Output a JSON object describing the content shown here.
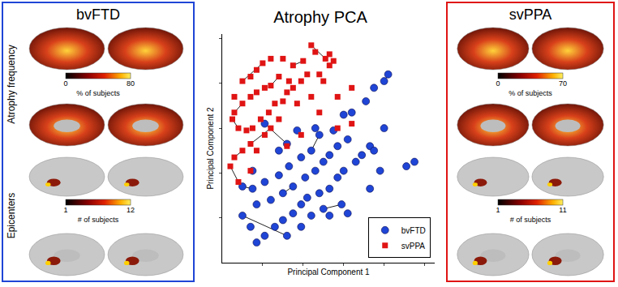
{
  "chart_data": {
    "type": "scatter",
    "title": "Atrophy PCA",
    "x_label": "Principal Component 1",
    "y_label": "Principal Component 2",
    "xlim": [
      0,
      10.5
    ],
    "ylim": [
      0,
      10.2
    ],
    "xticks": [
      2,
      4,
      6,
      8,
      10
    ],
    "yticks": [
      2,
      4,
      6,
      8,
      10
    ],
    "tick_labels": false,
    "legend": "lower right",
    "grid": false,
    "series": [
      {
        "name": "bvFTD",
        "color": "#1f45d6",
        "marker": "circle",
        "x": [
          2.1,
          3.2,
          4.6,
          3.7,
          2.8,
          1.5,
          1.0,
          1.5,
          2.1,
          2.8,
          3.3,
          3.9,
          4.4,
          4.8,
          5.5,
          6.0,
          6.4,
          7.1,
          7.5,
          8.0,
          8.2,
          1.7,
          2.4,
          3.0,
          3.5,
          4.1,
          4.6,
          5.0,
          5.3,
          5.7,
          6.2,
          7.3,
          7.5,
          6.9,
          6.6,
          6.0,
          5.7,
          5.3,
          4.8,
          4.2,
          3.9,
          3.5,
          3.0,
          2.6,
          2.1,
          1.7,
          1.4,
          1.0,
          3.2,
          3.9,
          4.4,
          5.0,
          5.9,
          6.2,
          5.3,
          9.5,
          9.1,
          7.8,
          7.3,
          8.0
        ],
        "y": [
          6.2,
          5.3,
          6.0,
          5.9,
          5.0,
          4.1,
          3.4,
          3.3,
          3.6,
          3.9,
          4.3,
          4.7,
          5.0,
          5.7,
          5.9,
          6.6,
          6.7,
          7.2,
          7.8,
          8.1,
          8.4,
          2.6,
          2.8,
          3.1,
          3.4,
          3.8,
          4.1,
          4.5,
          4.8,
          5.2,
          5.5,
          5.2,
          5.0,
          4.8,
          4.5,
          4.1,
          3.8,
          3.3,
          3.1,
          2.9,
          2.6,
          2.2,
          1.9,
          1.6,
          1.2,
          0.9,
          1.6,
          2.1,
          1.2,
          1.6,
          2.1,
          2.4,
          2.6,
          2.2,
          2.1,
          4.5,
          4.3,
          4.1,
          3.3,
          6.0
        ],
        "links": [
          [
            1,
            0
          ],
          [
            19,
            20
          ],
          [
            6,
            7
          ],
          [
            23,
            24
          ],
          [
            47,
            48
          ],
          [
            51,
            52
          ],
          [
            12,
            13
          ],
          [
            31,
            32
          ]
        ]
      },
      {
        "name": "svPPA",
        "color": "#e01414",
        "marker": "square",
        "x": [
          1.0,
          1.4,
          1.7,
          2.0,
          2.4,
          3.0,
          3.5,
          4.0,
          4.4,
          4.6,
          5.1,
          5.3,
          5.5,
          5.3,
          4.8,
          4.2,
          3.9,
          3.3,
          2.8,
          2.4,
          2.1,
          1.7,
          1.4,
          1.0,
          0.6,
          0.5,
          0.8,
          1.2,
          1.5,
          1.9,
          2.3,
          2.6,
          3.0,
          3.2,
          3.5,
          2.8,
          2.4,
          2.1,
          1.4,
          1.7,
          1.0,
          0.6,
          0.4,
          0.8,
          1.4,
          3.7,
          4.4,
          5.0,
          5.7,
          6.4,
          4.8,
          3.2,
          3.9,
          0.6,
          6.4,
          5.7
        ],
        "y": [
          8.1,
          8.3,
          8.6,
          8.9,
          9.1,
          9.1,
          8.8,
          9.0,
          9.7,
          9.4,
          9.1,
          9.3,
          9.0,
          8.8,
          8.4,
          8.4,
          8.1,
          8.1,
          8.3,
          7.9,
          7.8,
          7.6,
          7.4,
          7.1,
          6.7,
          6.4,
          6.0,
          5.9,
          6.0,
          6.4,
          6.7,
          7.1,
          7.2,
          7.6,
          7.8,
          6.4,
          6.0,
          5.7,
          5.3,
          5.0,
          5.0,
          4.7,
          4.3,
          3.6,
          4.1,
          7.1,
          7.4,
          8.1,
          7.4,
          7.8,
          6.7,
          5.2,
          5.7,
          7.4,
          6.2,
          6.0
        ],
        "links": [
          [
            23,
            24
          ],
          [
            25,
            26
          ],
          [
            0,
            3
          ],
          [
            6,
            7
          ],
          [
            8,
            10
          ],
          [
            36,
            38
          ],
          [
            40,
            41
          ],
          [
            42,
            43
          ],
          [
            18,
            19
          ]
        ]
      }
    ]
  },
  "panels": [
    {
      "title": "bvFTD",
      "color": "#1f45d6",
      "row_labels": [
        "Atrophy frequency",
        "Epicenters"
      ],
      "colorbars": [
        {
          "label": "% of subjects",
          "range": [
            0,
            80
          ],
          "ticks": [
            0,
            80
          ]
        },
        {
          "label": "# of subjects",
          "range": [
            1,
            12
          ],
          "ticks": [
            1,
            12
          ]
        }
      ]
    },
    {
      "title": "svPPA",
      "color": "#e01414",
      "colorbars": [
        {
          "label": "% of subjects",
          "range": [
            0,
            70
          ],
          "ticks": [
            0,
            70
          ]
        },
        {
          "label": "# of subjects",
          "range": [
            1,
            11
          ],
          "ticks": [
            1,
            11
          ]
        }
      ]
    }
  ]
}
